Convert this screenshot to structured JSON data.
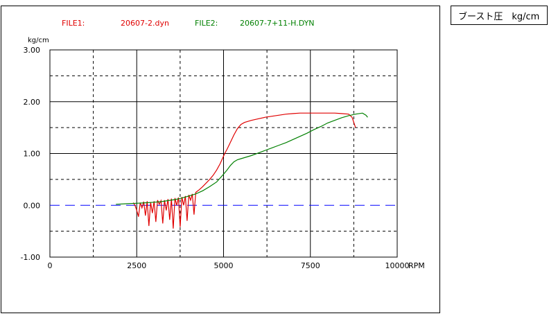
{
  "panel_title": "ブースト圧　kg/cm",
  "legend": {
    "file1_label": "FILE1:",
    "file1_name": "20607-2.dyn",
    "file2_label": "FILE2:",
    "file2_name": "20607-7+11-H.DYN"
  },
  "colors": {
    "file1": "#e00000",
    "file2": "#008000",
    "zero_line": "#0000ff",
    "grid": "#000000"
  },
  "chart_data": {
    "type": "line",
    "title": "",
    "ylabel": "kg/cm",
    "xlabel": "RPM",
    "xlim": [
      0,
      10000
    ],
    "ylim": [
      -1.0,
      3.0
    ],
    "x_ticks": [
      0,
      2500,
      5000,
      7500,
      10000
    ],
    "x_tick_labels": [
      "0",
      "2500",
      "5000",
      "7500",
      "10000"
    ],
    "y_ticks": [
      -1.0,
      0.0,
      1.0,
      2.0,
      3.0
    ],
    "y_tick_labels": [
      "-1.00",
      "0.00",
      "1.00",
      "2.00",
      "3.00"
    ],
    "grid": "solid major, dashed minor",
    "reference_line": 0.0,
    "series": [
      {
        "name": "20607-2.dyn",
        "x": [
          2400,
          2450,
          2500,
          2550,
          2600,
          2650,
          2700,
          2750,
          2800,
          2850,
          2900,
          2950,
          3000,
          3050,
          3100,
          3150,
          3200,
          3250,
          3300,
          3350,
          3400,
          3450,
          3500,
          3550,
          3600,
          3650,
          3700,
          3750,
          3800,
          3850,
          3900,
          3950,
          4000,
          4050,
          4100,
          4150,
          4200,
          4300,
          4400,
          4500,
          4600,
          4700,
          4800,
          4900,
          5000,
          5050,
          5100,
          5200,
          5300,
          5400,
          5500,
          5600,
          5700,
          5800,
          6000,
          6200,
          6400,
          6600,
          6800,
          7000,
          7200,
          7400,
          7600,
          7800,
          8000,
          8200,
          8400,
          8600,
          8700,
          8750,
          8800
        ],
        "y": [
          0.05,
          0.0,
          -0.1,
          -0.22,
          0.05,
          -0.05,
          0.07,
          -0.2,
          0.08,
          -0.4,
          0.06,
          -0.15,
          0.08,
          -0.32,
          0.1,
          0.02,
          0.09,
          -0.35,
          0.1,
          -0.1,
          0.12,
          -0.28,
          0.13,
          -0.45,
          0.14,
          0.0,
          0.15,
          -0.42,
          0.16,
          0.0,
          0.18,
          -0.3,
          0.2,
          0.1,
          0.22,
          -0.18,
          0.25,
          0.3,
          0.36,
          0.43,
          0.5,
          0.58,
          0.68,
          0.8,
          0.95,
          1.02,
          1.08,
          1.22,
          1.36,
          1.48,
          1.56,
          1.6,
          1.62,
          1.64,
          1.67,
          1.7,
          1.72,
          1.74,
          1.76,
          1.77,
          1.78,
          1.78,
          1.78,
          1.78,
          1.78,
          1.78,
          1.77,
          1.76,
          1.7,
          1.6,
          1.5
        ]
      },
      {
        "name": "20607-7+11-H.DYN",
        "x": [
          1900,
          2200,
          2500,
          2800,
          3000,
          3200,
          3400,
          3600,
          3800,
          4000,
          4200,
          4400,
          4600,
          4800,
          5000,
          5100,
          5200,
          5300,
          5400,
          5500,
          5600,
          5800,
          6000,
          6200,
          6400,
          6600,
          6800,
          7000,
          7200,
          7400,
          7600,
          7800,
          8000,
          8200,
          8400,
          8600,
          8800,
          9000,
          9100,
          9150
        ],
        "y": [
          0.02,
          0.03,
          0.04,
          0.05,
          0.06,
          0.07,
          0.09,
          0.11,
          0.14,
          0.18,
          0.22,
          0.28,
          0.36,
          0.45,
          0.6,
          0.68,
          0.77,
          0.84,
          0.88,
          0.9,
          0.92,
          0.96,
          1.01,
          1.06,
          1.11,
          1.16,
          1.21,
          1.27,
          1.33,
          1.39,
          1.46,
          1.52,
          1.59,
          1.64,
          1.69,
          1.73,
          1.76,
          1.78,
          1.74,
          1.7
        ]
      }
    ]
  }
}
